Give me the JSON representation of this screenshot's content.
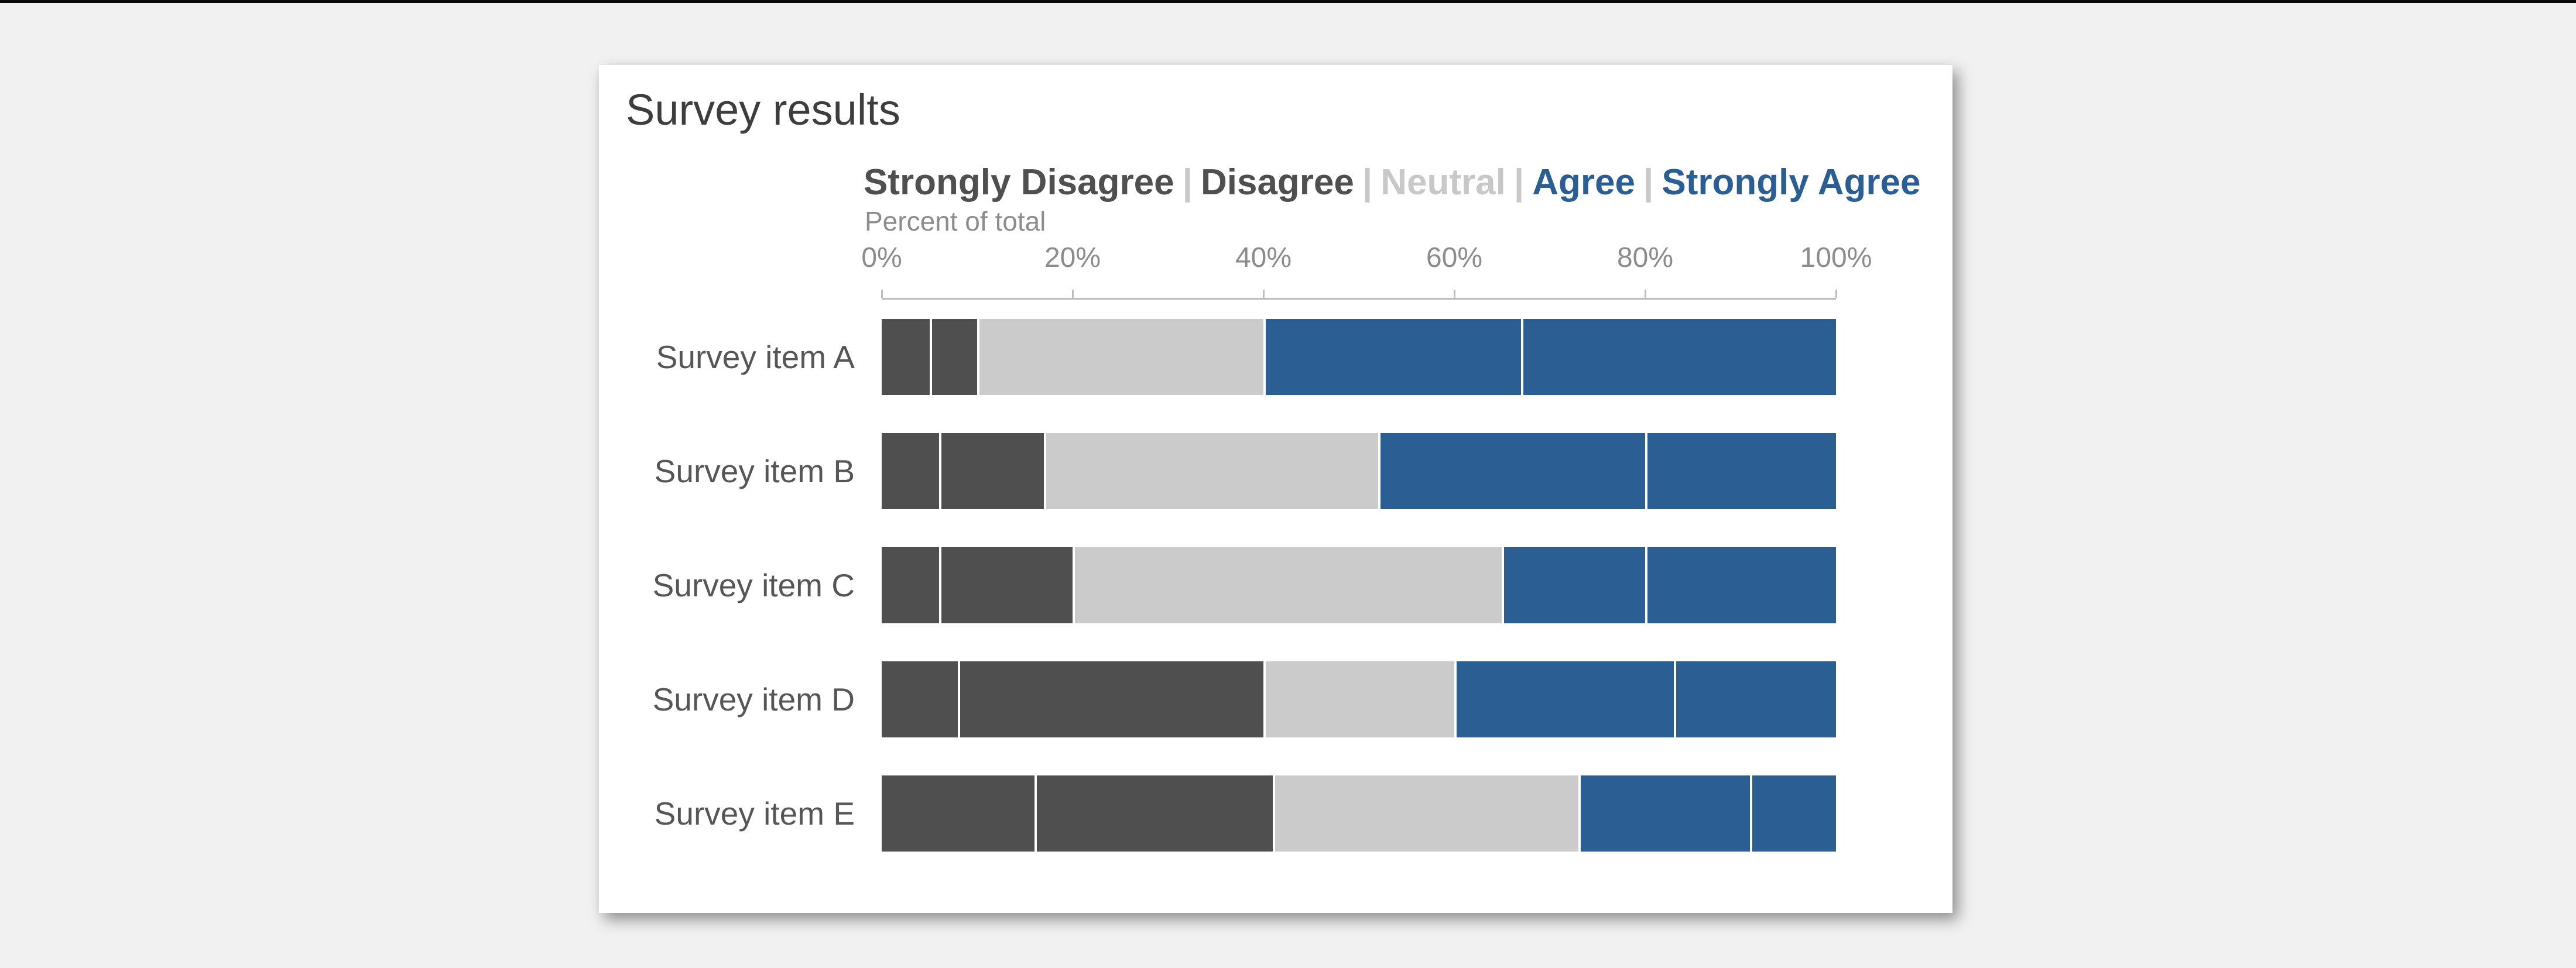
{
  "page": {
    "background_color": "#f1f1f1",
    "top_strip_color": "#0b0b0b"
  },
  "card": {
    "title": "Survey results",
    "background_color": "#ffffff"
  },
  "legend": {
    "separator": "|",
    "separator_color": "#c8c8c8",
    "items": [
      {
        "label": "Strongly Disagree",
        "color": "#4f4f4f"
      },
      {
        "label": "Disagree",
        "color": "#4f4f4f"
      },
      {
        "label": "Neutral",
        "color": "#c8c8c8"
      },
      {
        "label": "Agree",
        "color": "#2b5f94"
      },
      {
        "label": "Strongly Agree",
        "color": "#2b5f94"
      }
    ]
  },
  "axis": {
    "caption": "Percent of total",
    "tick_labels": [
      "0%",
      "20%",
      "40%",
      "60%",
      "80%",
      "100%"
    ],
    "tick_positions": [
      0,
      20,
      40,
      60,
      80,
      100
    ],
    "line_color": "#bdbdbd",
    "text_color": "#8c8c8c"
  },
  "chart_data": {
    "type": "bar",
    "stacked": true,
    "orientation": "horizontal",
    "title": "Survey results",
    "xlabel": "Percent of total",
    "ylabel": "",
    "xlim": [
      0,
      100
    ],
    "grid": false,
    "legend_position": "top",
    "categories": [
      "Survey item A",
      "Survey item B",
      "Survey item C",
      "Survey item D",
      "Survey item E"
    ],
    "series": [
      {
        "name": "Strongly Disagree",
        "color": "#4f4f4f",
        "values": [
          5,
          6,
          6,
          8,
          16
        ]
      },
      {
        "name": "Disagree",
        "color": "#4f4f4f",
        "values": [
          5,
          11,
          14,
          32,
          25
        ]
      },
      {
        "name": "Neutral",
        "color": "#cbcbcb",
        "values": [
          30,
          35,
          45,
          20,
          32
        ]
      },
      {
        "name": "Agree",
        "color": "#2b5f94",
        "values": [
          27,
          28,
          15,
          23,
          18
        ]
      },
      {
        "name": "Strongly Agree",
        "color": "#2b5f94",
        "values": [
          33,
          20,
          20,
          17,
          9
        ]
      }
    ]
  }
}
